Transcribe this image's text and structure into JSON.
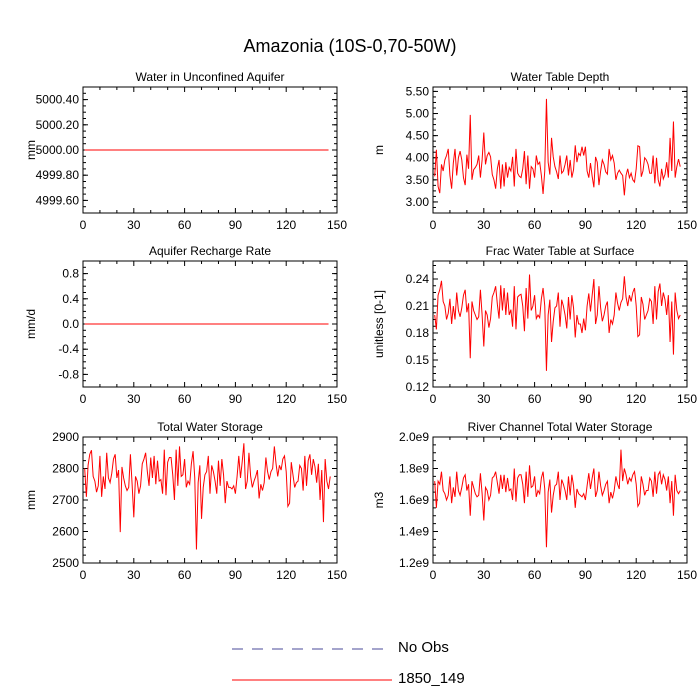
{
  "page_title": "Amazonia (10S-0,70-50W)",
  "colors": {
    "model": "#ff0000",
    "obs": "#4a4a9a",
    "axis": "#000000"
  },
  "legend": {
    "items": [
      {
        "label": "No Obs",
        "style": "dashed",
        "color": "#4a4a9a"
      },
      {
        "label": "1850_149",
        "style": "solid",
        "color": "#ff0000"
      }
    ]
  },
  "chart_data": [
    {
      "type": "line",
      "title": "Water in Unconfined Aquifer",
      "ylabel": "mm",
      "xlim": [
        0,
        150
      ],
      "ylim": [
        4999.5,
        5000.5
      ],
      "xticks": [
        0,
        30,
        60,
        90,
        120,
        150
      ],
      "yticks": [
        4999.6,
        4999.8,
        5000.0,
        5000.2,
        5000.4
      ],
      "ytick_labels": [
        "4999.60",
        "4999.80",
        "5000.00",
        "5000.20",
        "5000.40"
      ],
      "series": [
        {
          "values": [
            5000.0,
            5000.0,
            5000.0,
            5000.0,
            5000.0,
            5000.0,
            5000.0,
            5000.0,
            5000.0,
            5000.0,
            5000.0,
            5000.0,
            5000.0,
            5000.0,
            5000.0,
            5000.0,
            5000.0,
            5000.0,
            5000.0,
            5000.0,
            5000.0,
            5000.0,
            5000.0,
            5000.0,
            5000.0,
            5000.0,
            5000.0,
            5000.0,
            5000.0,
            5000.0,
            5000.0,
            5000.0,
            5000.0,
            5000.0,
            5000.0,
            5000.0,
            5000.0,
            5000.0,
            5000.0,
            5000.0,
            5000.0,
            5000.0,
            5000.0,
            5000.0,
            5000.0,
            5000.0,
            5000.0,
            5000.0,
            5000.0,
            5000.0,
            5000.0,
            5000.0,
            5000.0,
            5000.0,
            5000.0,
            5000.0,
            5000.0,
            5000.0,
            5000.0,
            5000.0,
            5000.0,
            5000.0,
            5000.0,
            5000.0,
            5000.0,
            5000.0,
            5000.0,
            5000.0,
            5000.0,
            5000.0,
            5000.0,
            5000.0,
            5000.0,
            5000.0,
            5000.0,
            5000.0,
            5000.0,
            5000.0,
            5000.0,
            5000.0,
            5000.0,
            5000.0,
            5000.0,
            5000.0,
            5000.0,
            5000.0,
            5000.0,
            5000.0,
            5000.0,
            5000.0,
            5000.0,
            5000.0,
            5000.0,
            5000.0,
            5000.0,
            5000.0,
            5000.0,
            5000.0,
            5000.0,
            5000.0,
            5000.0,
            5000.0,
            5000.0,
            5000.0,
            5000.0,
            5000.0,
            5000.0,
            5000.0,
            5000.0,
            5000.0,
            5000.0,
            5000.0,
            5000.0,
            5000.0,
            5000.0,
            5000.0,
            5000.0,
            5000.0,
            5000.0,
            5000.0,
            5000.0,
            5000.0,
            5000.0,
            5000.0,
            5000.0,
            5000.0,
            5000.0,
            5000.0,
            5000.0,
            5000.0,
            5000.0,
            5000.0,
            5000.0,
            5000.0,
            5000.0,
            5000.0,
            5000.0,
            5000.0,
            5000.0,
            5000.0,
            5000.0,
            5000.0,
            5000.0,
            5000.0,
            5000.0
          ]
        }
      ]
    },
    {
      "type": "line",
      "title": "Water Table Depth",
      "ylabel": "m",
      "xlim": [
        0,
        150
      ],
      "ylim": [
        2.75,
        5.6
      ],
      "xticks": [
        0,
        30,
        60,
        90,
        120,
        150
      ],
      "yticks": [
        3.0,
        3.5,
        4.0,
        4.5,
        5.0,
        5.5
      ],
      "ytick_labels": [
        "3.00",
        "3.50",
        "4.00",
        "4.50",
        "5.00",
        "5.50"
      ],
      "series": [
        {
          "values": [
            3.58,
            4.18,
            3.35,
            3.2,
            3.85,
            3.7,
            3.95,
            4.05,
            4.2,
            3.6,
            3.3,
            3.88,
            4.2,
            3.6,
            4.0,
            4.15,
            3.95,
            3.55,
            3.38,
            4.07,
            3.75,
            4.97,
            3.5,
            3.73,
            3.78,
            3.85,
            4.05,
            3.55,
            3.95,
            4.57,
            3.85,
            4.05,
            4.12,
            4.02,
            3.62,
            3.5,
            3.3,
            3.75,
            3.95,
            3.3,
            3.85,
            3.35,
            3.9,
            3.55,
            3.78,
            3.7,
            4.02,
            3.35,
            4.2,
            3.65,
            3.58,
            3.55,
            3.75,
            4.15,
            3.4,
            4.05,
            3.3,
            3.8,
            3.75,
            3.55,
            4.05,
            3.85,
            3.9,
            3.6,
            3.18,
            3.7,
            5.33,
            3.9,
            3.62,
            4.45,
            4.02,
            3.8,
            3.68,
            3.52,
            4.05,
            3.65,
            3.7,
            3.85,
            4.05,
            3.6,
            3.95,
            3.55,
            3.73,
            4.28,
            3.9,
            4.1,
            4.05,
            4.25,
            4.05,
            4.25,
            3.7,
            3.55,
            3.88,
            3.58,
            3.33,
            4.02,
            3.9,
            3.38,
            3.7,
            3.95,
            3.85,
            3.68,
            3.63,
            4.2,
            3.95,
            4.05,
            3.88,
            3.5,
            3.65,
            3.72,
            3.65,
            3.6,
            3.15,
            3.6,
            3.75,
            3.55,
            3.65,
            3.5,
            3.45,
            3.75,
            4.27,
            4.25,
            3.57,
            3.7,
            4.0,
            3.95,
            3.85,
            3.65,
            3.65,
            4.05,
            3.42,
            4.0,
            3.5,
            3.35,
            3.75,
            3.52,
            3.62,
            3.9,
            3.55,
            4.45,
            3.7,
            4.82,
            3.55,
            3.8,
            3.97,
            3.8
          ]
        }
      ]
    },
    {
      "type": "line",
      "title": "Aquifer Recharge Rate",
      "ylabel": "mm/d",
      "xlim": [
        0,
        150
      ],
      "ylim": [
        -1.0,
        1.0
      ],
      "xticks": [
        0,
        30,
        60,
        90,
        120,
        150
      ],
      "yticks": [
        -0.8,
        -0.4,
        0.0,
        0.4,
        0.8
      ],
      "ytick_labels": [
        "-0.8",
        "-0.4",
        "0.0",
        "0.4",
        "0.8"
      ],
      "series": [
        {
          "values": [
            0.0,
            0.0,
            0.0,
            0.0,
            0.0,
            0.0,
            0.0,
            0.0,
            0.0,
            0.0,
            0.0,
            0.0,
            0.0,
            0.0,
            0.0,
            0.0,
            0.0,
            0.0,
            0.0,
            0.0,
            0.0,
            0.0,
            0.0,
            0.0,
            0.0,
            0.0,
            0.0,
            0.0,
            0.0,
            0.0,
            0.0,
            0.0,
            0.0,
            0.0,
            0.0,
            0.0,
            0.0,
            0.0,
            0.0,
            0.0,
            0.0,
            0.0,
            0.0,
            0.0,
            0.0,
            0.0,
            0.0,
            0.0,
            0.0,
            0.0,
            0.0,
            0.0,
            0.0,
            0.0,
            0.0,
            0.0,
            0.0,
            0.0,
            0.0,
            0.0,
            0.0,
            0.0,
            0.0,
            0.0,
            0.0,
            0.0,
            0.0,
            0.0,
            0.0,
            0.0,
            0.0,
            0.0,
            0.0,
            0.0,
            0.0,
            0.0,
            0.0,
            0.0,
            0.0,
            0.0,
            0.0,
            0.0,
            0.0,
            0.0,
            0.0,
            0.0,
            0.0,
            0.0,
            0.0,
            0.0,
            0.0,
            0.0,
            0.0,
            0.0,
            0.0,
            0.0,
            0.0,
            0.0,
            0.0,
            0.0,
            0.0,
            0.0,
            0.0,
            0.0,
            0.0,
            0.0,
            0.0,
            0.0,
            0.0,
            0.0,
            0.0,
            0.0,
            0.0,
            0.0,
            0.0,
            0.0,
            0.0,
            0.0,
            0.0,
            0.0,
            0.0,
            0.0,
            0.0,
            0.0,
            0.0,
            0.0,
            0.0,
            0.0,
            0.0,
            0.0,
            0.0,
            0.0,
            0.0,
            0.0,
            0.0,
            0.0,
            0.0,
            0.0,
            0.0,
            0.0,
            0.0,
            0.0,
            0.0,
            0.0,
            0.0
          ]
        }
      ]
    },
    {
      "type": "line",
      "title": "Frac Water Table at Surface",
      "ylabel": "unitless [0-1]",
      "xlim": [
        0,
        150
      ],
      "ylim": [
        0.12,
        0.26
      ],
      "xticks": [
        0,
        30,
        60,
        90,
        120,
        150
      ],
      "yticks": [
        0.12,
        0.15,
        0.18,
        0.21,
        0.24
      ],
      "ytick_labels": [
        "0.12",
        "0.15",
        "0.18",
        "0.21",
        "0.24"
      ],
      "series": [
        {
          "values": [
            0.2,
            0.184,
            0.222,
            0.228,
            0.238,
            0.215,
            0.21,
            0.195,
            0.202,
            0.218,
            0.19,
            0.21,
            0.195,
            0.225,
            0.205,
            0.198,
            0.208,
            0.222,
            0.228,
            0.203,
            0.213,
            0.152,
            0.215,
            0.205,
            0.2,
            0.195,
            0.198,
            0.228,
            0.2,
            0.165,
            0.205,
            0.2,
            0.186,
            0.196,
            0.22,
            0.225,
            0.232,
            0.212,
            0.196,
            0.233,
            0.205,
            0.23,
            0.2,
            0.225,
            0.2,
            0.206,
            0.187,
            0.232,
            0.184,
            0.22,
            0.222,
            0.223,
            0.21,
            0.182,
            0.23,
            0.196,
            0.245,
            0.205,
            0.21,
            0.222,
            0.196,
            0.2,
            0.197,
            0.218,
            0.23,
            0.21,
            0.138,
            0.2,
            0.217,
            0.17,
            0.193,
            0.208,
            0.21,
            0.225,
            0.187,
            0.217,
            0.21,
            0.2,
            0.185,
            0.22,
            0.195,
            0.222,
            0.208,
            0.175,
            0.2,
            0.19,
            0.19,
            0.18,
            0.196,
            0.183,
            0.21,
            0.224,
            0.204,
            0.222,
            0.24,
            0.19,
            0.2,
            0.232,
            0.208,
            0.193,
            0.2,
            0.21,
            0.215,
            0.18,
            0.195,
            0.19,
            0.2,
            0.225,
            0.213,
            0.205,
            0.214,
            0.218,
            0.243,
            0.22,
            0.21,
            0.222,
            0.215,
            0.225,
            0.23,
            0.21,
            0.176,
            0.178,
            0.22,
            0.212,
            0.195,
            0.2,
            0.205,
            0.218,
            0.215,
            0.19,
            0.232,
            0.195,
            0.226,
            0.235,
            0.21,
            0.225,
            0.217,
            0.2,
            0.222,
            0.17,
            0.215,
            0.156,
            0.225,
            0.205,
            0.196,
            0.2
          ]
        }
      ]
    },
    {
      "type": "line",
      "title": "Total Water Storage",
      "ylabel": "mm",
      "xlim": [
        0,
        150
      ],
      "ylim": [
        2500,
        2900
      ],
      "xticks": [
        0,
        30,
        60,
        90,
        120,
        150
      ],
      "yticks": [
        2500,
        2600,
        2700,
        2800,
        2900
      ],
      "ytick_labels": [
        "2500",
        "2600",
        "2700",
        "2800",
        "2900"
      ],
      "series": [
        {
          "values": [
            2800,
            2710,
            2810,
            2845,
            2858,
            2775,
            2760,
            2725,
            2745,
            2840,
            2710,
            2775,
            2735,
            2850,
            2770,
            2755,
            2785,
            2830,
            2845,
            2770,
            2795,
            2598,
            2805,
            2770,
            2745,
            2730,
            2740,
            2845,
            2750,
            2645,
            2775,
            2760,
            2720,
            2745,
            2815,
            2830,
            2850,
            2790,
            2745,
            2835,
            2770,
            2840,
            2750,
            2825,
            2760,
            2765,
            2720,
            2860,
            2715,
            2820,
            2835,
            2835,
            2780,
            2700,
            2860,
            2745,
            2870,
            2775,
            2780,
            2830,
            2740,
            2760,
            2750,
            2815,
            2855,
            2770,
            2543,
            2755,
            2810,
            2640,
            2740,
            2780,
            2790,
            2840,
            2720,
            2810,
            2790,
            2760,
            2720,
            2825,
            2745,
            2830,
            2780,
            2690,
            2760,
            2740,
            2740,
            2735,
            2745,
            2720,
            2775,
            2840,
            2770,
            2820,
            2880,
            2735,
            2760,
            2850,
            2775,
            2740,
            2760,
            2775,
            2795,
            2705,
            2750,
            2730,
            2755,
            2835,
            2790,
            2765,
            2790,
            2800,
            2870,
            2815,
            2775,
            2810,
            2795,
            2830,
            2840,
            2790,
            2680,
            2690,
            2820,
            2780,
            2740,
            2755,
            2760,
            2810,
            2800,
            2730,
            2840,
            2745,
            2825,
            2845,
            2780,
            2830,
            2805,
            2755,
            2815,
            2700,
            2795,
            2630,
            2830,
            2760,
            2735,
            2775
          ]
        }
      ]
    },
    {
      "type": "line",
      "title": "River Channel Total Water Storage",
      "ylabel": "m3",
      "xlim": [
        0,
        150
      ],
      "ylim": [
        1.2,
        2.0
      ],
      "xticks": [
        0,
        30,
        60,
        90,
        120,
        150
      ],
      "yticks": [
        1.2,
        1.4,
        1.6,
        1.8,
        2.0
      ],
      "ytick_labels": [
        "1.2e9",
        "1.4e9",
        "1.6e9",
        "1.8e9",
        "2.0e9"
      ],
      "series": [
        {
          "values": [
            1.72,
            1.55,
            1.72,
            1.7,
            1.78,
            1.66,
            1.64,
            1.6,
            1.63,
            1.75,
            1.58,
            1.68,
            1.62,
            1.78,
            1.66,
            1.63,
            1.68,
            1.74,
            1.76,
            1.66,
            1.7,
            1.5,
            1.72,
            1.68,
            1.64,
            1.62,
            1.63,
            1.77,
            1.64,
            1.47,
            1.68,
            1.66,
            1.6,
            1.63,
            1.74,
            1.75,
            1.78,
            1.71,
            1.64,
            1.76,
            1.67,
            1.76,
            1.65,
            1.74,
            1.66,
            1.67,
            1.6,
            1.8,
            1.59,
            1.74,
            1.76,
            1.76,
            1.7,
            1.58,
            1.78,
            1.62,
            1.82,
            1.68,
            1.69,
            1.75,
            1.62,
            1.66,
            1.64,
            1.74,
            1.78,
            1.67,
            1.3,
            1.65,
            1.73,
            1.52,
            1.63,
            1.69,
            1.7,
            1.78,
            1.6,
            1.73,
            1.7,
            1.66,
            1.6,
            1.75,
            1.63,
            1.76,
            1.69,
            1.55,
            1.67,
            1.64,
            1.63,
            1.62,
            1.64,
            1.6,
            1.69,
            1.77,
            1.67,
            1.74,
            1.8,
            1.62,
            1.66,
            1.78,
            1.69,
            1.63,
            1.66,
            1.7,
            1.72,
            1.58,
            1.65,
            1.61,
            1.66,
            1.75,
            1.7,
            1.67,
            1.92,
            1.72,
            1.8,
            1.76,
            1.7,
            1.74,
            1.72,
            1.76,
            1.78,
            1.7,
            1.56,
            1.58,
            1.75,
            1.7,
            1.63,
            1.66,
            1.66,
            1.74,
            1.72,
            1.62,
            1.78,
            1.64,
            1.76,
            1.78,
            1.7,
            1.76,
            1.73,
            1.66,
            1.75,
            1.58,
            1.72,
            1.5,
            1.76,
            1.66,
            1.64,
            1.66
          ]
        }
      ]
    }
  ]
}
